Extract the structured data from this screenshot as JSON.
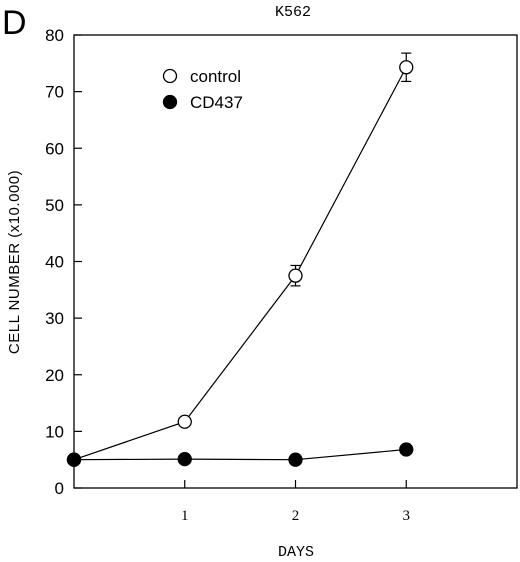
{
  "panel_label": "D",
  "chart_data": {
    "type": "line",
    "title": "K562",
    "xlabel": "DAYS",
    "ylabel": "CELL NUMBER (x10.000)",
    "xlim": [
      0,
      4
    ],
    "ylim": [
      0,
      80
    ],
    "xticks": [
      "1",
      "2",
      "3"
    ],
    "xtick_values": [
      1,
      2,
      3
    ],
    "yticks": [
      0,
      10,
      20,
      30,
      40,
      50,
      60,
      70,
      80
    ],
    "grid": false,
    "legend_position": "top-left",
    "series": [
      {
        "name": "control",
        "marker": "open-circle",
        "x": [
          0,
          1,
          2,
          3
        ],
        "y": [
          5,
          11.7,
          37.5,
          74.3
        ],
        "error": [
          0,
          0,
          1.8,
          2.5
        ]
      },
      {
        "name": "CD437",
        "marker": "filled-circle",
        "x": [
          0,
          1,
          2,
          3
        ],
        "y": [
          5,
          5.1,
          5,
          6.8
        ],
        "error": [
          0,
          0,
          0,
          0
        ]
      }
    ]
  }
}
